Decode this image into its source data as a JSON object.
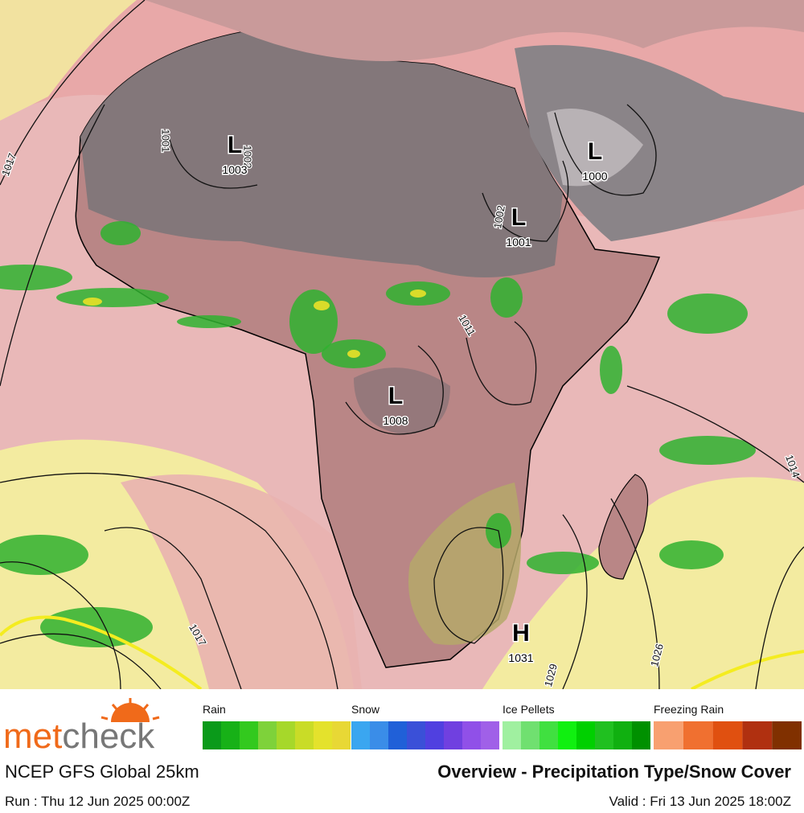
{
  "map": {
    "pressure_systems": [
      {
        "type": "L",
        "value": 1003
      },
      {
        "type": "L",
        "value": 1000
      },
      {
        "type": "L",
        "value": 1001
      },
      {
        "type": "L",
        "value": 1008
      },
      {
        "type": "H",
        "value": 1031
      }
    ],
    "isobar_labels": [
      1017,
      1001,
      1002,
      1002,
      1011,
      1014,
      1017,
      1026,
      1029
    ]
  },
  "footer": {
    "brand": {
      "part1": "met",
      "part2": "check"
    },
    "model": "NCEP GFS Global 25km",
    "title": "Overview - Precipitation Type/Snow Cover",
    "run": "Run : Thu 12 Jun 2025 00:00Z",
    "valid": "Valid : Fri 13 Jun 2025 18:00Z",
    "legend": [
      {
        "name": "Rain",
        "colors": [
          "#0a9a1a",
          "#17b117",
          "#33c91e",
          "#7ed23a",
          "#a6d82a",
          "#c9dc27",
          "#e4e22c",
          "#e8d835"
        ]
      },
      {
        "name": "Snow",
        "colors": [
          "#3aa6f0",
          "#3a8de8",
          "#2060d8",
          "#3a50d8",
          "#5040e0",
          "#7040e0",
          "#9050e8",
          "#a060e8"
        ]
      },
      {
        "name": "Ice Pellets",
        "colors": [
          "#a0f0a0",
          "#70e070",
          "#40e040",
          "#10f010",
          "#00d000",
          "#20c020",
          "#10b010",
          "#009000"
        ]
      },
      {
        "name": "Freezing Rain",
        "colors": [
          "#f8a070",
          "#f07030",
          "#e05010",
          "#b03010",
          "#803000"
        ]
      }
    ]
  }
}
